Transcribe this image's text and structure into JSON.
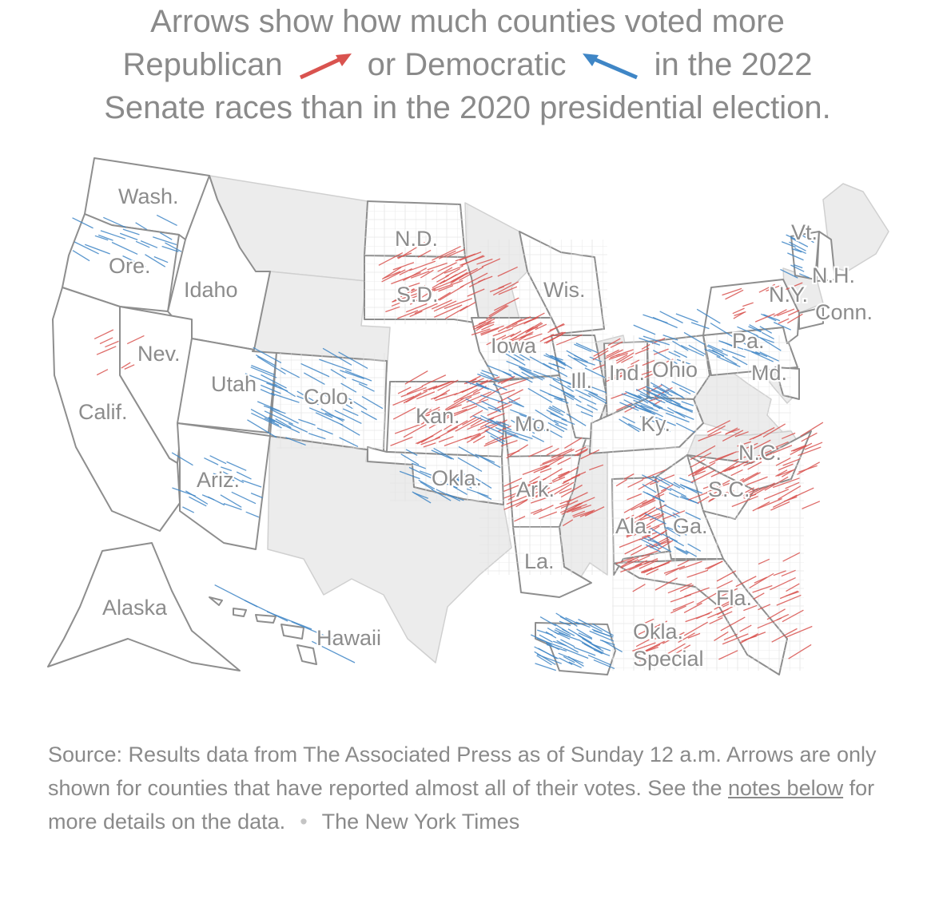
{
  "title": {
    "line1": "Arrows show how much counties voted more",
    "line2_a": "Republican",
    "line2_b": "or Democratic",
    "line2_c": "in the 2022",
    "line3": "Senate races than in the 2020 presidential election."
  },
  "colors": {
    "republican": "#d9534f",
    "democratic": "#3f86c6",
    "state_fill": "#ffffff",
    "no_race_fill": "#ececec",
    "text": "#8a8a8a"
  },
  "legend": [
    {
      "party": "Republican",
      "icon": "red-arrow-icon",
      "direction": "right"
    },
    {
      "party": "Democratic",
      "icon": "blue-arrow-icon",
      "direction": "left"
    }
  ],
  "map_labels": {
    "wash": "Wash.",
    "ore": "Ore.",
    "idaho": "Idaho",
    "nev": "Nev.",
    "calif": "Calif.",
    "utah": "Utah",
    "colo": "Colo.",
    "ariz": "Ariz.",
    "nd": "N.D.",
    "sd": "S.D.",
    "kan": "Kan.",
    "okla": "Okla.",
    "iowa": "Iowa",
    "wis": "Wis.",
    "mo": "Mo.",
    "ark": "Ark.",
    "la": "La.",
    "ill": "Ill.",
    "ind": "Ind.",
    "ohio": "Ohio",
    "ky": "Ky.",
    "pa": "Pa.",
    "ny": "N.Y.",
    "vt": "Vt.",
    "nh": "N.H.",
    "conn": "Conn.",
    "md": "Md.",
    "nc": "N.C.",
    "sc": "S.C.",
    "ala": "Ala.",
    "ga": "Ga.",
    "fla": "Fla.",
    "alaska": "Alaska",
    "hawaii": "Hawaii",
    "okla_special_1": "Okla.",
    "okla_special_2": "Special"
  },
  "source": {
    "text_before": "Source: Results data from The Associated Press as of Sunday 12 a.m. Arrows are only shown for counties that have reported almost all of their votes. See the",
    "link": "notes below",
    "text_after": "for more details on the data.",
    "credit": "The New York Times"
  }
}
